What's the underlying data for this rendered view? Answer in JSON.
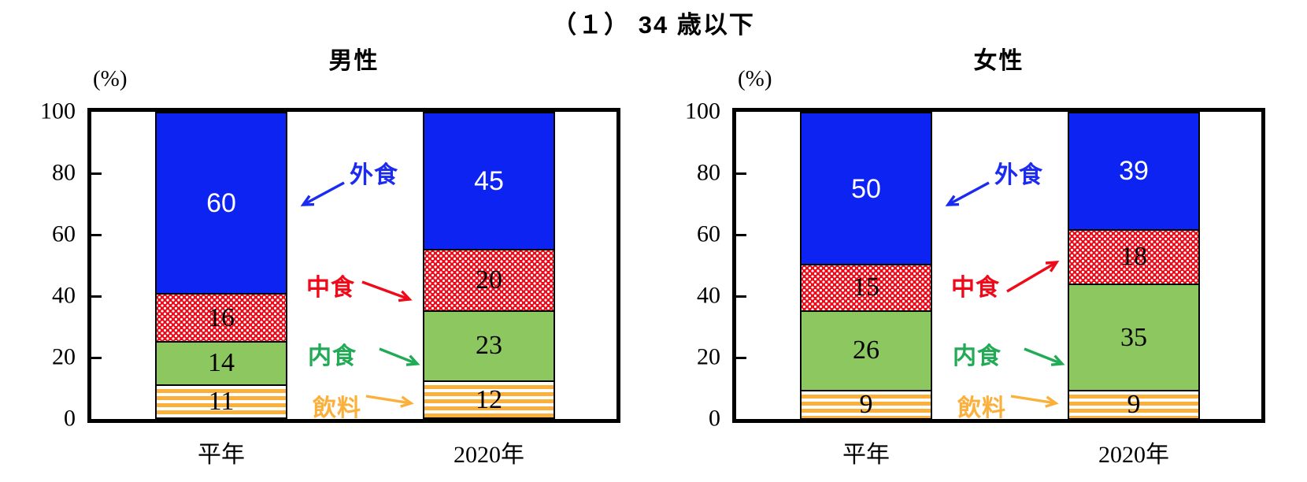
{
  "title": "（１） 34 歳以下",
  "y_axis": {
    "unit": "(%)",
    "ticks": [
      100,
      80,
      60,
      40,
      20,
      0
    ],
    "range": [
      0,
      100
    ],
    "tick_values_with_marks": [
      20,
      40,
      60,
      80
    ]
  },
  "legend": {
    "items": [
      {
        "key": "gaishoku",
        "label": "外食",
        "color": "#1c2bf0"
      },
      {
        "key": "chushoku",
        "label": "中食",
        "color": "#ee0a18"
      },
      {
        "key": "naishoku",
        "label": "内食",
        "color": "#22aa56"
      },
      {
        "key": "inryo",
        "label": "飲料",
        "color": "#fbb03c"
      }
    ]
  },
  "colors": {
    "bar_gaishoku": "#0c23f2",
    "bar_chushoku_pattern": "#ee0a18",
    "bar_naishoku": "#8dc75f",
    "bar_inryo_stripe": "#fbb03c",
    "axis": "#000000"
  },
  "chart_data": [
    {
      "type": "bar",
      "stacked": true,
      "title": "男性",
      "ylabel": "(%)",
      "ylim": [
        0,
        100
      ],
      "categories": [
        "平年",
        "2020年"
      ],
      "series": [
        {
          "key": "gaishoku",
          "name": "外食",
          "values": [
            60,
            45
          ]
        },
        {
          "key": "chushoku",
          "name": "中食",
          "values": [
            16,
            20
          ]
        },
        {
          "key": "naishoku",
          "name": "内食",
          "values": [
            14,
            23
          ]
        },
        {
          "key": "inryo",
          "name": "飲料",
          "values": [
            11,
            12
          ]
        }
      ]
    },
    {
      "type": "bar",
      "stacked": true,
      "title": "女性",
      "ylabel": "(%)",
      "ylim": [
        0,
        100
      ],
      "categories": [
        "平年",
        "2020年"
      ],
      "series": [
        {
          "key": "gaishoku",
          "name": "外食",
          "values": [
            50,
            39
          ]
        },
        {
          "key": "chushoku",
          "name": "中食",
          "values": [
            15,
            18
          ]
        },
        {
          "key": "naishoku",
          "name": "内食",
          "values": [
            26,
            35
          ]
        },
        {
          "key": "inryo",
          "name": "飲料",
          "values": [
            9,
            9
          ]
        }
      ]
    }
  ]
}
